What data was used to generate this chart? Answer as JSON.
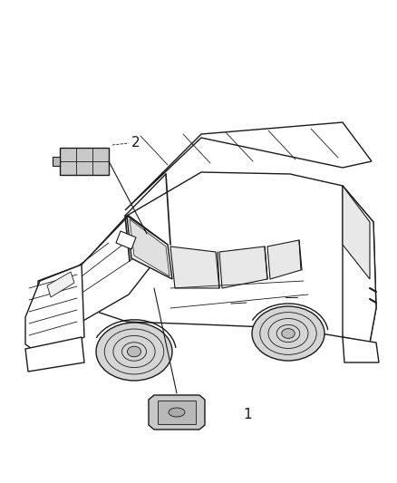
{
  "background_color": "#ffffff",
  "figsize": [
    4.38,
    5.33
  ],
  "dpi": 100,
  "label1_text": "1",
  "label2_text": "2",
  "lw_main": 1.0,
  "lw_thin": 0.6,
  "car_line_color": "#1a1a1a",
  "part_fill": "#c8c8c8",
  "part_edge": "#1a1a1a",
  "white": "#ffffff"
}
